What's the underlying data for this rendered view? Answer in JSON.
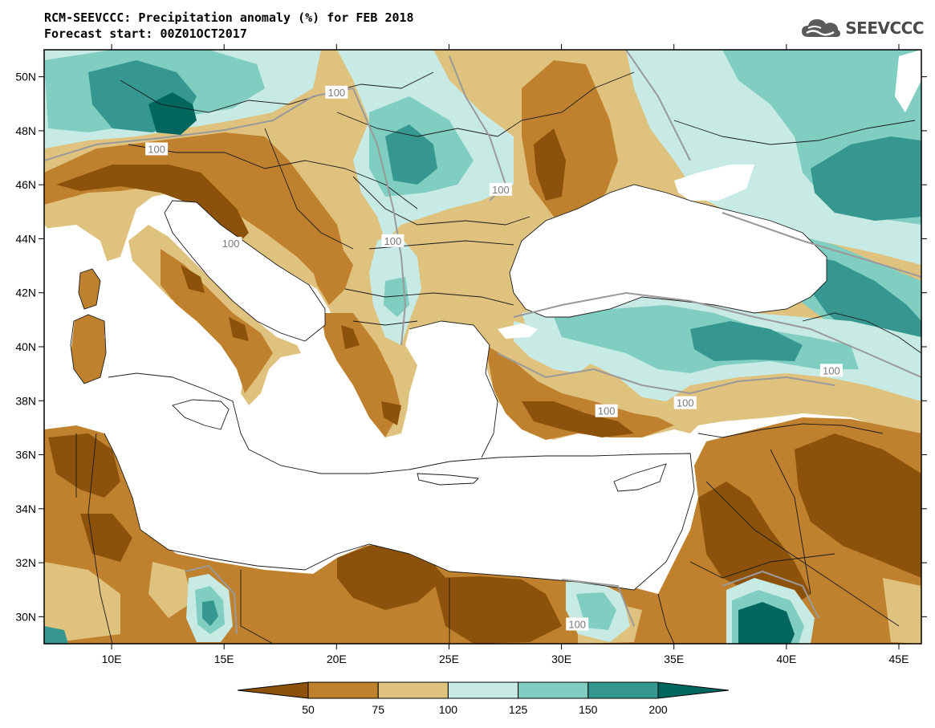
{
  "title": "RCM-SEEVCCC: Precipitation anomaly (%) for FEB 2018",
  "subtitle": "Forecast start: 00Z01OCT2017",
  "logo": {
    "text": "SEEVCCC",
    "icon": "cloud-icon"
  },
  "map": {
    "lon_range": [
      7,
      46
    ],
    "lat_range": [
      29,
      51
    ],
    "lon_ticks": [
      {
        "value": 10,
        "label": "10E"
      },
      {
        "value": 15,
        "label": "15E"
      },
      {
        "value": 20,
        "label": "20E"
      },
      {
        "value": 25,
        "label": "25E"
      },
      {
        "value": 30,
        "label": "30E"
      },
      {
        "value": 35,
        "label": "35E"
      },
      {
        "value": 40,
        "label": "40E"
      },
      {
        "value": 45,
        "label": "45E"
      }
    ],
    "lat_ticks": [
      {
        "value": 30,
        "label": "30N"
      },
      {
        "value": 32,
        "label": "32N"
      },
      {
        "value": 34,
        "label": "34N"
      },
      {
        "value": 36,
        "label": "36N"
      },
      {
        "value": 38,
        "label": "38N"
      },
      {
        "value": 40,
        "label": "40N"
      },
      {
        "value": 42,
        "label": "42N"
      },
      {
        "value": 44,
        "label": "44N"
      },
      {
        "value": 46,
        "label": "46N"
      },
      {
        "value": 48,
        "label": "48N"
      },
      {
        "value": 50,
        "label": "50N"
      }
    ],
    "contour_labels": [
      {
        "text": "100",
        "lon": 12.0,
        "lat": 47.3
      },
      {
        "text": "100",
        "lon": 20.0,
        "lat": 49.4
      },
      {
        "text": "100",
        "lon": 27.3,
        "lat": 45.8
      },
      {
        "text": "100",
        "lon": 22.5,
        "lat": 43.9
      },
      {
        "text": "100",
        "lon": 15.3,
        "lat": 43.8
      },
      {
        "text": "100",
        "lon": 42.0,
        "lat": 39.1
      },
      {
        "text": "100",
        "lon": 32.0,
        "lat": 37.6
      },
      {
        "text": "100",
        "lon": 35.5,
        "lat": 37.9
      },
      {
        "text": "100",
        "lon": 30.7,
        "lat": 29.7
      }
    ]
  },
  "legend": {
    "boundaries": [
      "50",
      "75",
      "100",
      "125",
      "150",
      "200"
    ],
    "colors": [
      "#8c510a",
      "#bf812d",
      "#dfc27d",
      "#c7eae5",
      "#80cdc1",
      "#35978f",
      "#01665e"
    ]
  },
  "colors": {
    "sea": "#ffffff",
    "land_default": "#dfc27d",
    "border": "#1a1a1a",
    "contour": "#9a9a9a"
  }
}
